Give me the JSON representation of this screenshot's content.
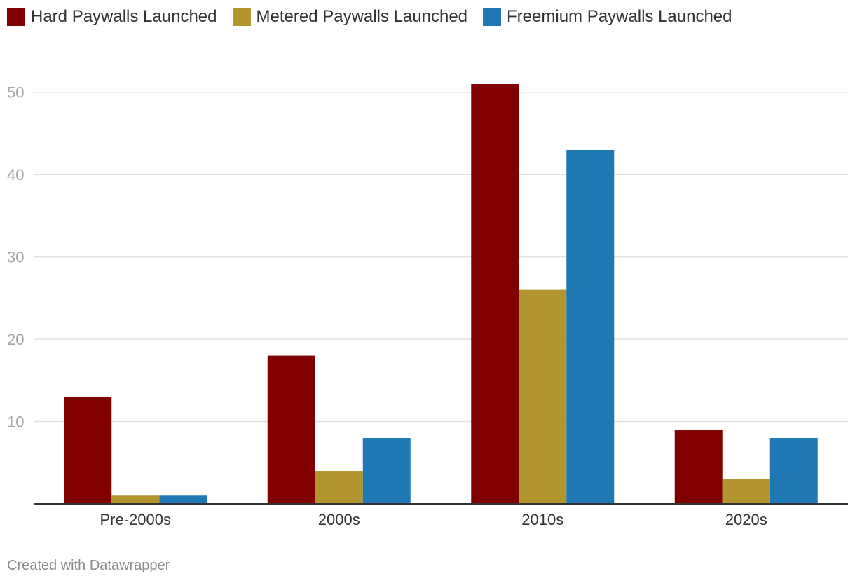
{
  "chart_data": {
    "type": "bar",
    "categories": [
      "Pre-2000s",
      "2000s",
      "2010s",
      "2020s"
    ],
    "series": [
      {
        "name": "Hard Paywalls Launched",
        "color": "#800000",
        "values": [
          13,
          18,
          51,
          9
        ]
      },
      {
        "name": "Metered Paywalls Launched",
        "color": "#b39530",
        "values": [
          1,
          4,
          26,
          3
        ]
      },
      {
        "name": "Freemium Paywalls Launched",
        "color": "#1f77b4",
        "values": [
          1,
          8,
          43,
          8
        ]
      }
    ],
    "ylim": [
      0,
      50
    ],
    "yticks": [
      10,
      20,
      30,
      40,
      50
    ],
    "grid": true,
    "legend_position": "top-left"
  },
  "footer": {
    "credit": "Created with Datawrapper"
  }
}
